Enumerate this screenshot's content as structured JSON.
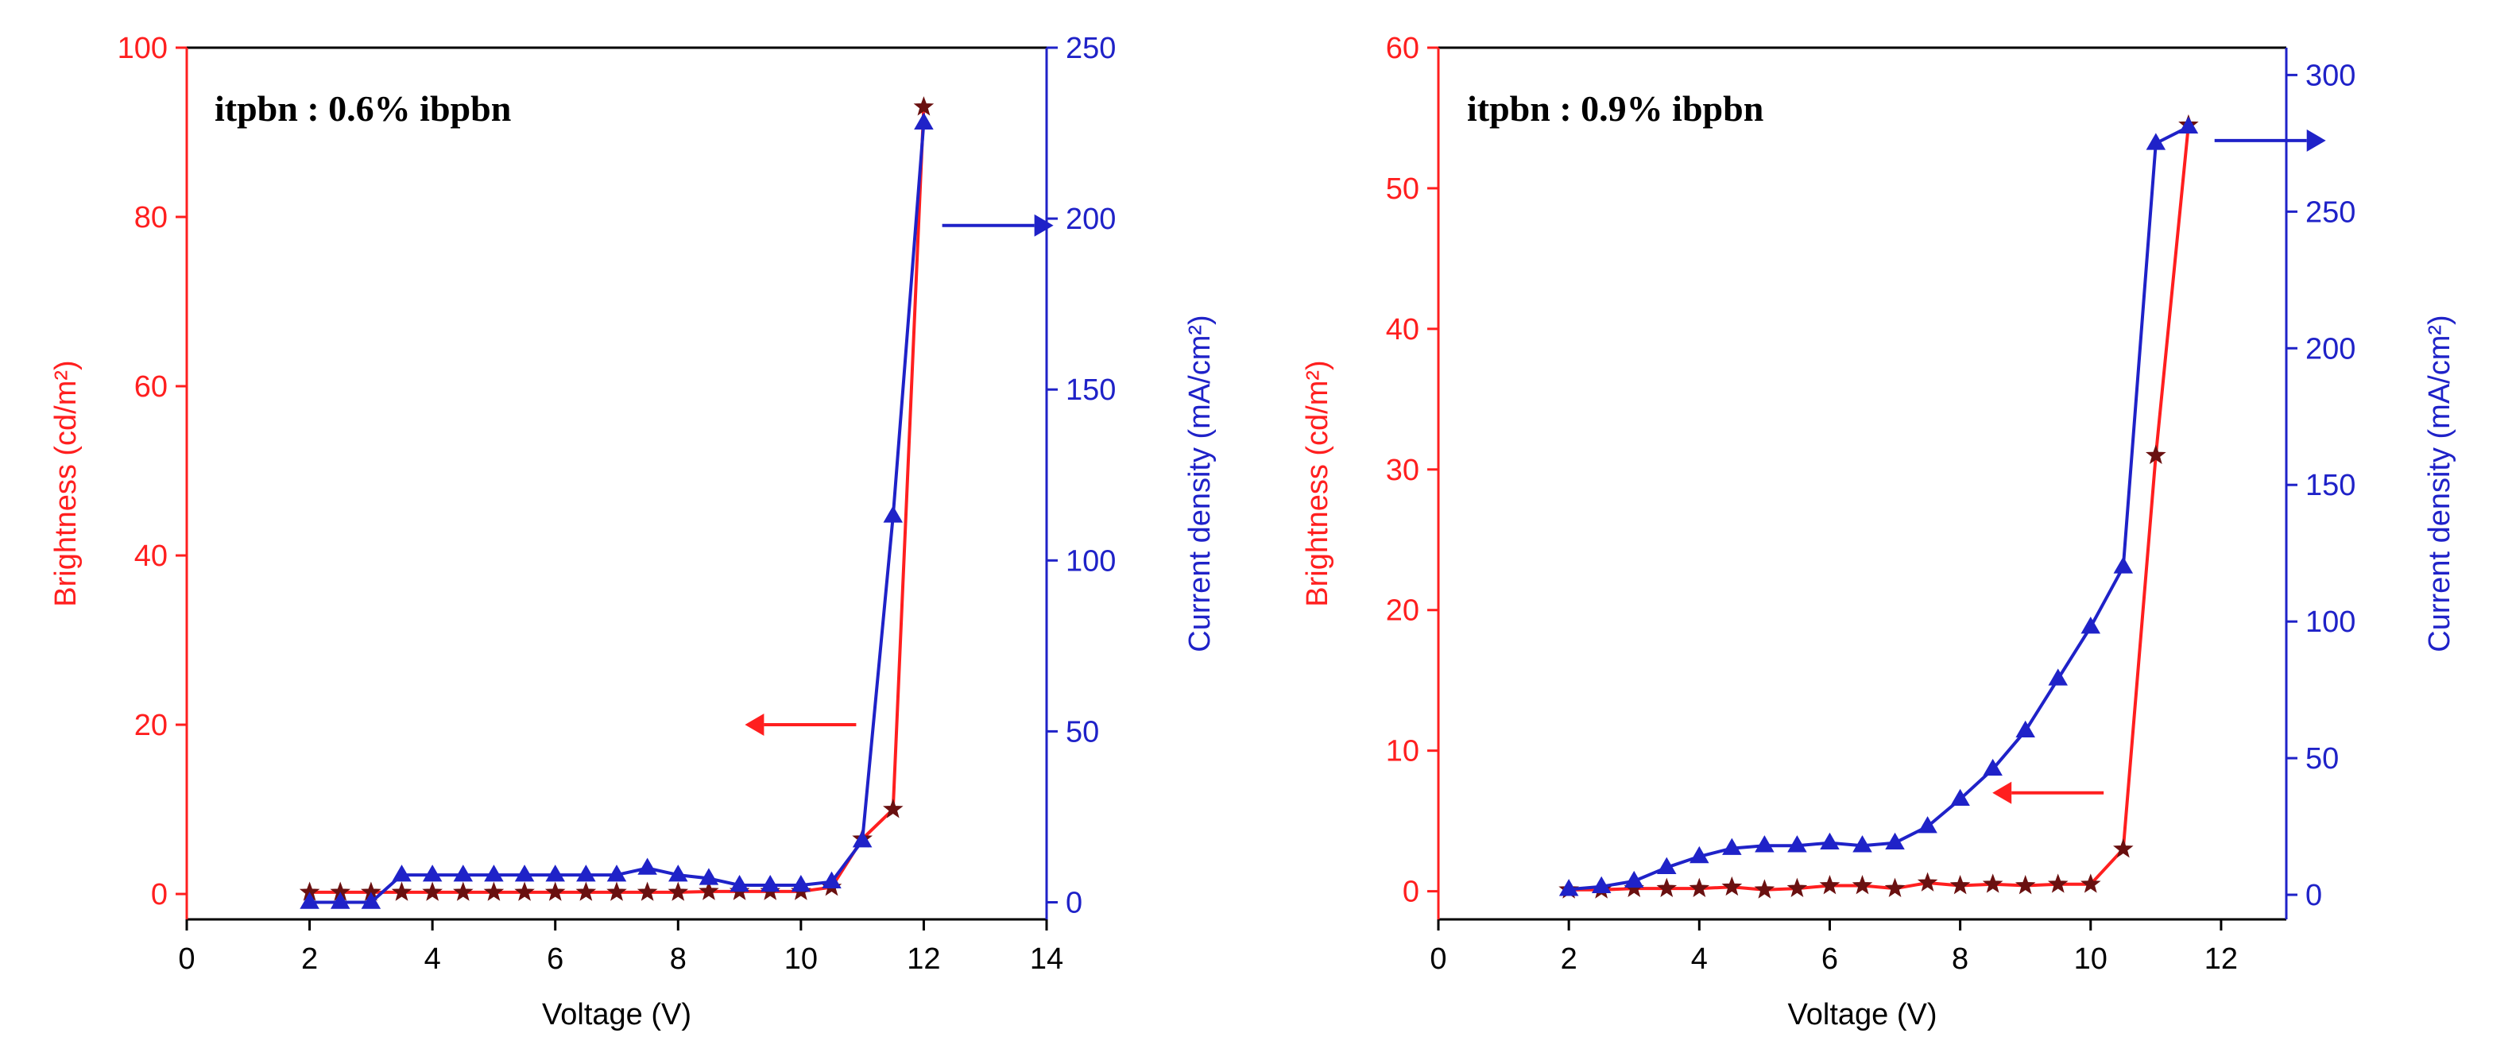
{
  "colors": {
    "brightness": "#ff1f1f",
    "current": "#1f22c8",
    "brightness_marker": "#6a1010",
    "current_marker": "#1f22c8",
    "axis": "#000000"
  },
  "chart_data": [
    {
      "type": "line",
      "annotation": "itpbn : 0.6% ibpbn",
      "xlabel": "Voltage (V)",
      "ylabel_left": "Brightness (cd/m²)",
      "ylabel_right": "Current density (mA/cm²)",
      "xlim": [
        0,
        14
      ],
      "ylim_left": [
        -3,
        100
      ],
      "ylim_right": [
        -5,
        250
      ],
      "xticks": [
        0,
        2,
        4,
        6,
        8,
        10,
        12,
        14
      ],
      "xtick_labels": [
        "0",
        "2",
        "4",
        "6",
        "8",
        "10",
        "12",
        "14"
      ],
      "yticks_left": [
        0,
        20,
        40,
        60,
        80,
        100
      ],
      "ytick_labels_left": [
        "0",
        "20",
        "40",
        "60",
        "80",
        "100"
      ],
      "yticks_right": [
        0,
        50,
        100,
        150,
        200,
        250
      ],
      "ytick_labels_right": [
        "0",
        "50",
        "100",
        "150",
        "200",
        "250"
      ],
      "series": [
        {
          "name": "Brightness",
          "axis": "left",
          "marker": "star",
          "x": [
            2,
            2.5,
            3,
            3.5,
            4,
            4.5,
            5,
            5.5,
            6,
            6.5,
            7,
            7.5,
            8,
            8.5,
            9,
            9.5,
            10,
            10.5,
            11,
            11.5,
            12
          ],
          "values": [
            0.2,
            0.2,
            0.2,
            0.2,
            0.2,
            0.2,
            0.2,
            0.2,
            0.2,
            0.2,
            0.2,
            0.2,
            0.2,
            0.3,
            0.3,
            0.3,
            0.3,
            0.8,
            6.5,
            10,
            93
          ]
        },
        {
          "name": "Current density",
          "axis": "right",
          "marker": "triangle",
          "x": [
            2,
            2.5,
            3,
            3.5,
            4,
            4.5,
            5,
            5.5,
            6,
            6.5,
            7,
            7.5,
            8,
            8.5,
            9,
            9.5,
            10,
            10.5,
            11,
            11.5,
            12
          ],
          "values": [
            0,
            0,
            0,
            8,
            8,
            8,
            8,
            8,
            8,
            8,
            8,
            10,
            8,
            7,
            5,
            5,
            5,
            6,
            18,
            113,
            228
          ]
        }
      ],
      "arrows": [
        {
          "points_to": "left",
          "x": 10.9,
          "y_axis": "left",
          "y": 20
        },
        {
          "points_to": "right",
          "x": 12.3,
          "y_axis": "right",
          "y": 198
        }
      ]
    },
    {
      "type": "line",
      "annotation": "itpbn : 0.9% ibpbn",
      "xlabel": "Voltage (V)",
      "ylabel_left": "Brightness (cd/m²)",
      "ylabel_right": "Current density (mA/cm²)",
      "xlim": [
        0,
        13
      ],
      "ylim_left": [
        -2,
        60
      ],
      "ylim_right": [
        -9,
        310
      ],
      "xticks": [
        0,
        2,
        4,
        6,
        8,
        10,
        12
      ],
      "xtick_labels": [
        "0",
        "2",
        "4",
        "6",
        "8",
        "10",
        "12"
      ],
      "yticks_left": [
        0,
        10,
        20,
        30,
        40,
        50,
        60
      ],
      "ytick_labels_left": [
        "0",
        "10",
        "20",
        "30",
        "40",
        "50",
        "60"
      ],
      "yticks_right": [
        0,
        50,
        100,
        150,
        200,
        250,
        300
      ],
      "ytick_labels_right": [
        "0",
        "50",
        "100",
        "150",
        "200",
        "250",
        "300"
      ],
      "series": [
        {
          "name": "Brightness",
          "axis": "left",
          "marker": "star",
          "x": [
            2,
            2.5,
            3,
            3.5,
            4,
            4.5,
            5,
            5.5,
            6,
            6.5,
            7,
            7.5,
            8,
            8.5,
            9,
            9.5,
            10,
            10.5,
            11,
            11.5
          ],
          "values": [
            0.1,
            0.1,
            0.2,
            0.2,
            0.2,
            0.3,
            0.1,
            0.2,
            0.4,
            0.4,
            0.2,
            0.6,
            0.4,
            0.5,
            0.4,
            0.5,
            0.5,
            3,
            31,
            54.5
          ]
        },
        {
          "name": "Current density",
          "axis": "right",
          "marker": "triangle",
          "x": [
            2,
            2.5,
            3,
            3.5,
            4,
            4.5,
            5,
            5.5,
            6,
            6.5,
            7,
            7.5,
            8,
            8.5,
            9,
            9.5,
            10,
            10.5,
            11,
            11.5
          ],
          "values": [
            2,
            3,
            5,
            10,
            14,
            17,
            18,
            18,
            19,
            18,
            19,
            25,
            35,
            46,
            60,
            79,
            98,
            120,
            275,
            281
          ]
        }
      ],
      "arrows": [
        {
          "points_to": "left",
          "x": 10.2,
          "y_axis": "left",
          "y": 7
        },
        {
          "points_to": "right",
          "x": 11.9,
          "y_axis": "right",
          "y": 276
        }
      ]
    }
  ]
}
